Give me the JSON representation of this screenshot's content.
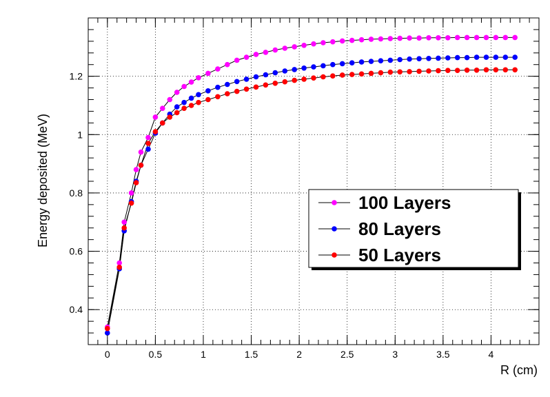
{
  "chart_data": {
    "type": "scatter",
    "title": "",
    "xlabel": "R (cm)",
    "ylabel": "Energy deposited (MeV)",
    "xlim": [
      -0.2,
      4.5
    ],
    "ylim": [
      0.28,
      1.4
    ],
    "grid": true,
    "legend_position": "center-right",
    "x_ticks": [
      "0",
      "0.5",
      "1",
      "1.5",
      "2",
      "2.5",
      "3",
      "3.5",
      "4"
    ],
    "y_ticks": [
      "0.4",
      "0.6",
      "0.8",
      "1",
      "1.2"
    ],
    "x_tick_values": [
      0,
      0.5,
      1,
      1.5,
      2,
      2.5,
      3,
      3.5,
      4
    ],
    "y_tick_values": [
      0.4,
      0.6,
      0.8,
      1.0,
      1.2
    ],
    "series": [
      {
        "name": "100 Layers",
        "color": "#ff00ff",
        "x": [
          0,
          0.125,
          0.175,
          0.25,
          0.3,
          0.35,
          0.425,
          0.5,
          0.575,
          0.65,
          0.725,
          0.8,
          0.875,
          0.95,
          1.05,
          1.15,
          1.25,
          1.35,
          1.45,
          1.55,
          1.65,
          1.75,
          1.85,
          1.95,
          2.05,
          2.15,
          2.25,
          2.35,
          2.45,
          2.55,
          2.65,
          2.75,
          2.85,
          2.95,
          3.05,
          3.15,
          3.25,
          3.35,
          3.45,
          3.55,
          3.65,
          3.75,
          3.85,
          3.95,
          4.05,
          4.15,
          4.25
        ],
        "y": [
          0.34,
          0.56,
          0.7,
          0.8,
          0.88,
          0.94,
          0.99,
          1.06,
          1.09,
          1.12,
          1.145,
          1.165,
          1.18,
          1.195,
          1.21,
          1.225,
          1.24,
          1.255,
          1.265,
          1.275,
          1.282,
          1.29,
          1.296,
          1.301,
          1.306,
          1.311,
          1.315,
          1.318,
          1.321,
          1.323,
          1.325,
          1.327,
          1.328,
          1.329,
          1.33,
          1.331,
          1.331,
          1.332,
          1.332,
          1.332,
          1.333,
          1.333,
          1.333,
          1.333,
          1.333,
          1.333,
          1.333
        ]
      },
      {
        "name": "80 Layers",
        "color": "#0000ff",
        "x": [
          0,
          0.125,
          0.175,
          0.25,
          0.3,
          0.35,
          0.425,
          0.5,
          0.575,
          0.65,
          0.725,
          0.8,
          0.875,
          0.95,
          1.05,
          1.15,
          1.25,
          1.35,
          1.45,
          1.55,
          1.65,
          1.75,
          1.85,
          1.95,
          2.05,
          2.15,
          2.25,
          2.35,
          2.45,
          2.55,
          2.65,
          2.75,
          2.85,
          2.95,
          3.05,
          3.15,
          3.25,
          3.35,
          3.45,
          3.55,
          3.65,
          3.75,
          3.85,
          3.95,
          4.05,
          4.15,
          4.25
        ],
        "y": [
          0.32,
          0.54,
          0.67,
          0.77,
          0.84,
          0.895,
          0.95,
          1.005,
          1.04,
          1.07,
          1.095,
          1.11,
          1.125,
          1.137,
          1.15,
          1.162,
          1.172,
          1.182,
          1.19,
          1.198,
          1.205,
          1.212,
          1.218,
          1.223,
          1.228,
          1.232,
          1.236,
          1.24,
          1.243,
          1.246,
          1.249,
          1.251,
          1.253,
          1.255,
          1.257,
          1.259,
          1.26,
          1.261,
          1.262,
          1.263,
          1.264,
          1.264,
          1.265,
          1.265,
          1.265,
          1.265,
          1.265
        ]
      },
      {
        "name": "50 Layers",
        "color": "#ff0000",
        "x": [
          0,
          0.125,
          0.175,
          0.25,
          0.3,
          0.35,
          0.425,
          0.5,
          0.575,
          0.65,
          0.725,
          0.8,
          0.875,
          0.95,
          1.05,
          1.15,
          1.25,
          1.35,
          1.45,
          1.55,
          1.65,
          1.75,
          1.85,
          1.95,
          2.05,
          2.15,
          2.25,
          2.35,
          2.45,
          2.55,
          2.65,
          2.75,
          2.85,
          2.95,
          3.05,
          3.15,
          3.25,
          3.35,
          3.45,
          3.55,
          3.65,
          3.75,
          3.85,
          3.95,
          4.05,
          4.15,
          4.25
        ],
        "y": [
          0.335,
          0.545,
          0.68,
          0.765,
          0.835,
          0.895,
          0.97,
          1.01,
          1.04,
          1.06,
          1.075,
          1.09,
          1.1,
          1.11,
          1.12,
          1.13,
          1.14,
          1.148,
          1.156,
          1.163,
          1.17,
          1.176,
          1.181,
          1.186,
          1.19,
          1.194,
          1.198,
          1.201,
          1.204,
          1.206,
          1.208,
          1.21,
          1.212,
          1.214,
          1.215,
          1.216,
          1.217,
          1.218,
          1.219,
          1.22,
          1.22,
          1.221,
          1.221,
          1.222,
          1.222,
          1.222,
          1.222
        ]
      }
    ]
  }
}
